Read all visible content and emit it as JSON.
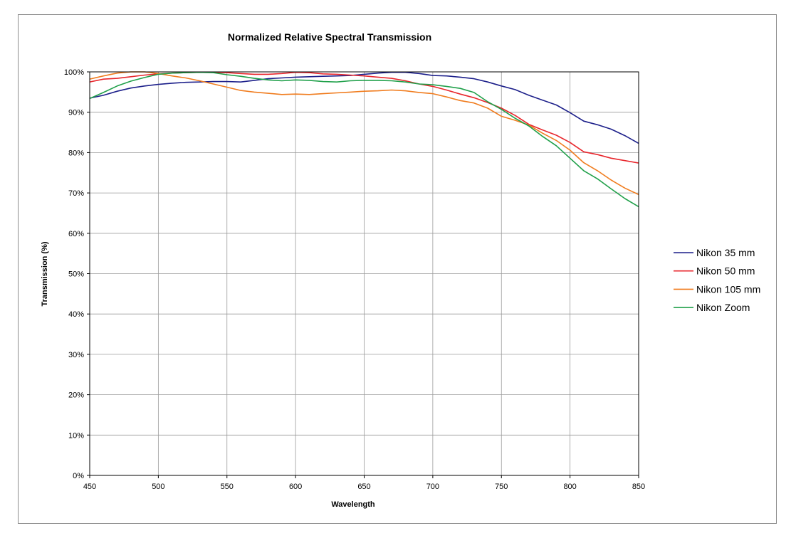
{
  "chart_data": {
    "type": "line",
    "title": "Normalized Relative Spectral Transmission",
    "xlabel": "Wavelength",
    "ylabel": "Transmission (%)",
    "xlim": [
      450,
      850
    ],
    "ylim": [
      0,
      100
    ],
    "x_ticks": [
      "450",
      "500",
      "550",
      "600",
      "650",
      "700",
      "750",
      "800",
      "850"
    ],
    "y_ticks": [
      "0%",
      "10%",
      "20%",
      "30%",
      "40%",
      "50%",
      "60%",
      "70%",
      "80%",
      "90%",
      "100%"
    ],
    "grid": true,
    "legend_position": "right",
    "x": [
      450,
      460,
      470,
      480,
      490,
      500,
      510,
      520,
      530,
      540,
      550,
      560,
      570,
      580,
      590,
      600,
      610,
      620,
      630,
      640,
      650,
      660,
      670,
      680,
      690,
      700,
      710,
      720,
      730,
      740,
      750,
      760,
      770,
      780,
      790,
      800,
      810,
      820,
      830,
      840,
      850
    ],
    "series": [
      {
        "name": "Nikon 35 mm",
        "color": "#1c1f8a",
        "values": [
          93.5,
          94.2,
          95.2,
          96.0,
          96.5,
          96.9,
          97.2,
          97.4,
          97.5,
          97.6,
          97.6,
          97.5,
          97.9,
          98.3,
          98.5,
          98.7,
          98.8,
          98.9,
          99.0,
          99.1,
          99.4,
          99.7,
          99.9,
          99.9,
          99.6,
          99.1,
          99.0,
          98.7,
          98.3,
          97.5,
          96.5,
          95.6,
          94.2,
          93.0,
          91.8,
          89.9,
          87.8,
          86.9,
          85.8,
          84.2,
          82.3
        ]
      },
      {
        "name": "Nikon 50 mm",
        "color": "#e8262c",
        "values": [
          97.5,
          98.2,
          98.4,
          98.8,
          99.2,
          99.5,
          99.7,
          99.8,
          99.9,
          99.9,
          99.8,
          99.6,
          99.4,
          99.4,
          99.6,
          99.9,
          99.8,
          99.5,
          99.4,
          99.2,
          99.0,
          98.7,
          98.4,
          97.8,
          97.0,
          96.4,
          95.5,
          94.5,
          93.6,
          92.4,
          91.0,
          89.2,
          87.0,
          85.6,
          84.3,
          82.5,
          80.2,
          79.5,
          78.6,
          78.0,
          77.4
        ]
      },
      {
        "name": "Nikon 105 mm",
        "color": "#f07c1e",
        "values": [
          98.2,
          99.0,
          99.7,
          100.0,
          100.0,
          99.6,
          99.0,
          98.5,
          97.8,
          97.0,
          96.2,
          95.4,
          95.0,
          94.7,
          94.4,
          94.5,
          94.4,
          94.6,
          94.8,
          95.0,
          95.2,
          95.3,
          95.5,
          95.3,
          94.9,
          94.6,
          93.8,
          92.9,
          92.3,
          91.0,
          89.0,
          88.0,
          86.8,
          84.8,
          83.0,
          80.6,
          77.5,
          75.5,
          73.2,
          71.2,
          69.6
        ]
      },
      {
        "name": "Nikon Zoom",
        "color": "#20a04a",
        "values": [
          93.4,
          94.9,
          96.5,
          97.7,
          98.6,
          99.4,
          99.7,
          99.8,
          99.9,
          99.8,
          99.3,
          98.9,
          98.4,
          98.0,
          97.8,
          98.0,
          97.9,
          97.6,
          97.5,
          97.8,
          97.9,
          97.9,
          97.8,
          97.5,
          97.0,
          96.8,
          96.4,
          95.9,
          94.9,
          92.6,
          90.7,
          88.5,
          86.6,
          84.0,
          81.7,
          78.6,
          75.5,
          73.5,
          71.0,
          68.6,
          66.6
        ]
      }
    ]
  }
}
